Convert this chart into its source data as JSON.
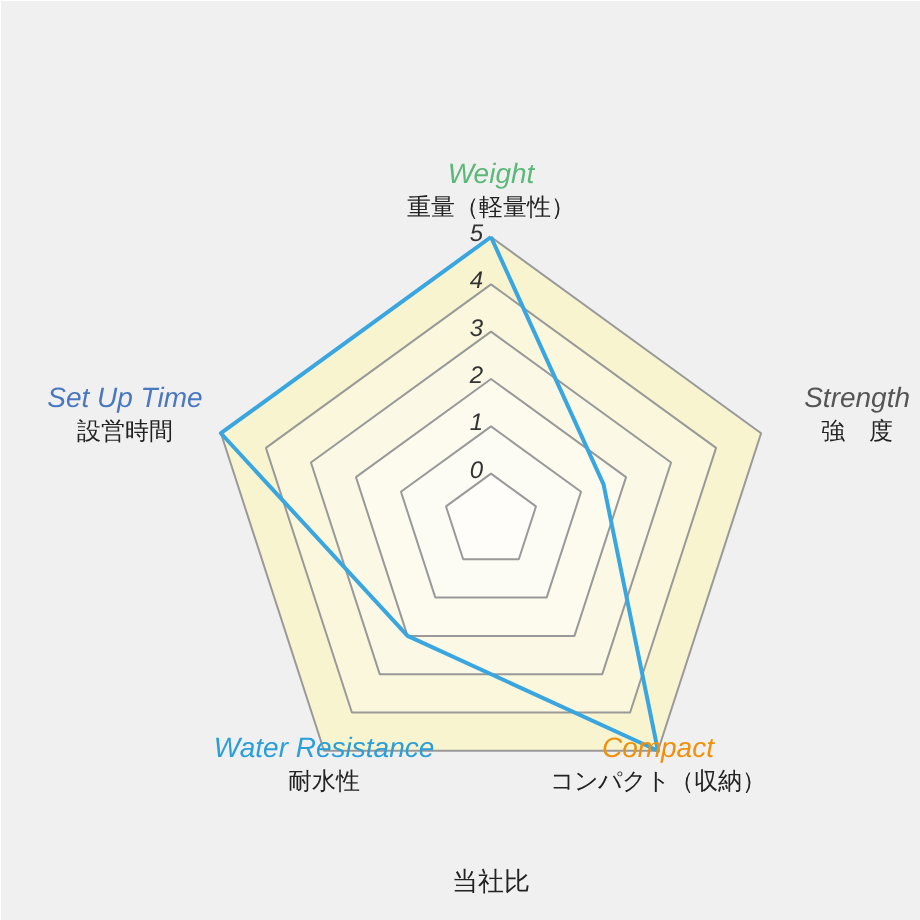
{
  "chart_data": {
    "type": "radar",
    "categories": [
      "Weight\n重量（軽量性）",
      "Strength\n強　度",
      "Compact\nコンパクト（収納）",
      "Water Resistance\n耐水性",
      "Set Up Time\n設営時間"
    ],
    "colors": [
      "#5cb878",
      "#555555",
      "#f0900a",
      "#2a9fd8",
      "#4a78c0"
    ],
    "series": [
      {
        "color": "#3aa6e0",
        "values": [
          5,
          1.5,
          5,
          2,
          5
        ]
      }
    ],
    "ylim": [
      -1,
      5
    ],
    "yticks": [
      0,
      1,
      2,
      3,
      4,
      5
    ],
    "grid": true,
    "marker": "none",
    "line_style": "solid",
    "annotations": [
      "当社比"
    ]
  }
}
